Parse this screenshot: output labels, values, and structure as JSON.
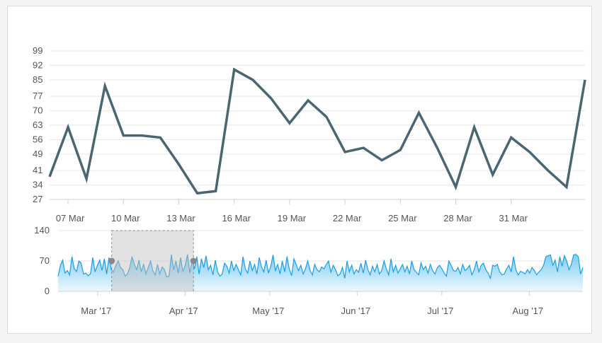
{
  "chart_data": [
    {
      "type": "line",
      "role": "main",
      "y_ticks": [
        "27",
        "34",
        "41",
        "49",
        "56",
        "63",
        "70",
        "77",
        "85",
        "92",
        "99"
      ],
      "x_ticks": [
        "07 Mar",
        "10 Mar",
        "13 Mar",
        "16 Mar",
        "19 Mar",
        "22 Mar",
        "25 Mar",
        "28 Mar",
        "31 Mar"
      ],
      "ylim": [
        27,
        99
      ],
      "x_start": "2017-03-06",
      "x": [
        "2017-03-06",
        "2017-03-07",
        "2017-03-08",
        "2017-03-09",
        "2017-03-10",
        "2017-03-11",
        "2017-03-12",
        "2017-03-13",
        "2017-03-14",
        "2017-03-15",
        "2017-03-16",
        "2017-03-17",
        "2017-03-18",
        "2017-03-19",
        "2017-03-20",
        "2017-03-21",
        "2017-03-22",
        "2017-03-23",
        "2017-03-24",
        "2017-03-25",
        "2017-03-26",
        "2017-03-27",
        "2017-03-28",
        "2017-03-29",
        "2017-03-30",
        "2017-03-31",
        "2017-04-01",
        "2017-04-02",
        "2017-04-03",
        "2017-04-04"
      ],
      "values": [
        38,
        62,
        37,
        82,
        58,
        58,
        57,
        44,
        30,
        31,
        90,
        85,
        76,
        64,
        75,
        67,
        50,
        52,
        46,
        51,
        69,
        52,
        33,
        62,
        39,
        57,
        50,
        41,
        33,
        85
      ],
      "grid": true,
      "color": "#4a6670"
    },
    {
      "type": "area",
      "role": "navigator",
      "y_ticks": [
        "140",
        "70",
        "0"
      ],
      "x_ticks": [
        "Mar '17",
        "Apr '17",
        "May '17",
        "Jun '17",
        "Jul '17",
        "Aug '17"
      ],
      "ylim": [
        0,
        140
      ],
      "x_range": [
        "2017-02-15",
        "2017-08-20"
      ],
      "selection": [
        "2017-03-06",
        "2017-04-04"
      ],
      "values": [
        35,
        60,
        72,
        42,
        48,
        38,
        80,
        52,
        46,
        70,
        65,
        40,
        42,
        36,
        40,
        78,
        45,
        60,
        72,
        48,
        75,
        40,
        78,
        50,
        45,
        60,
        70,
        55,
        50,
        35,
        40,
        55,
        80,
        62,
        50,
        72,
        45,
        62,
        40,
        55,
        70,
        48,
        38,
        62,
        40,
        56,
        50,
        33,
        35,
        85,
        50,
        70,
        42,
        78,
        45,
        60,
        85,
        42,
        70,
        52,
        80,
        40,
        75,
        55,
        82,
        50,
        60,
        38,
        72,
        45,
        35,
        40,
        65,
        58,
        42,
        70,
        48,
        62,
        50,
        38,
        80,
        52,
        42,
        70,
        48,
        62,
        40,
        78,
        56,
        45,
        72,
        42,
        58,
        84,
        48,
        62,
        40,
        70,
        45,
        80,
        52,
        36,
        75,
        62,
        48,
        60,
        40,
        52,
        70,
        48,
        38,
        62,
        50,
        45,
        56,
        52,
        62,
        70,
        44,
        60,
        50,
        36,
        40,
        55,
        30,
        70,
        45,
        60,
        40,
        50,
        44,
        65,
        42,
        72,
        50,
        38,
        58,
        45,
        62,
        40,
        48,
        70,
        52,
        38,
        75,
        45,
        60,
        42,
        52,
        62,
        45,
        58,
        40,
        70,
        50,
        44,
        38,
        66,
        50,
        58,
        42,
        62,
        48,
        40,
        54,
        60,
        52,
        42,
        35,
        70,
        60,
        48,
        46,
        55,
        40,
        62,
        48,
        52,
        60,
        38,
        50,
        70,
        45,
        60,
        65,
        50,
        42,
        30,
        60,
        58,
        62,
        45,
        38,
        40,
        52,
        60,
        45,
        80,
        50,
        38,
        46,
        44,
        40,
        50,
        42,
        55,
        48,
        38,
        45,
        50,
        60,
        80,
        82,
        84,
        60,
        72,
        45,
        80,
        58,
        82,
        70,
        50,
        62,
        84,
        85,
        80,
        40,
        55
      ],
      "grid": true,
      "line_color": "#1e9ee0",
      "fill_color": "#7fcdf2"
    }
  ]
}
